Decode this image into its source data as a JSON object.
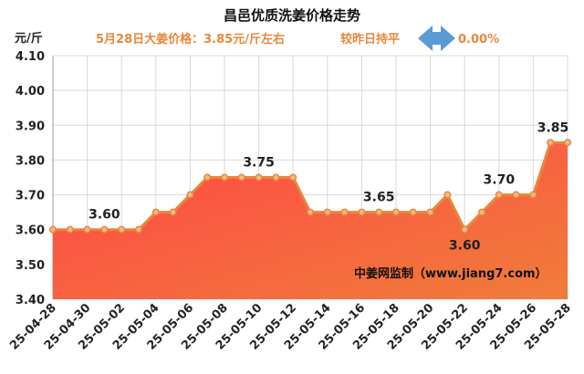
{
  "chart_data": {
    "type": "area",
    "title": "昌邑优质洗姜价格走势",
    "subtitle": "5月28日大姜价格：3.85元/斤左右",
    "change_label": "较昨日持平",
    "change_value": "0.00%",
    "ylabel": "元/斤",
    "ylim": [
      3.4,
      4.1
    ],
    "yticks": [
      "3.40",
      "3.50",
      "3.60",
      "3.70",
      "3.80",
      "3.90",
      "4.00",
      "4.10"
    ],
    "grid": true,
    "watermark": "中姜网监制（www.jiang7.com）",
    "x": [
      "25-04-28",
      "25-04-29",
      "25-04-30",
      "25-05-01",
      "25-05-02",
      "25-05-03",
      "25-05-04",
      "25-05-05",
      "25-05-06",
      "25-05-07",
      "25-05-08",
      "25-05-09",
      "25-05-10",
      "25-05-11",
      "25-05-12",
      "25-05-13",
      "25-05-14",
      "25-05-15",
      "25-05-16",
      "25-05-17",
      "25-05-18",
      "25-05-19",
      "25-05-20",
      "25-05-21",
      "25-05-22",
      "25-05-23",
      "25-05-24",
      "25-05-25",
      "25-05-26",
      "25-05-27",
      "25-05-28"
    ],
    "xtick_labels": [
      "25-04-28",
      "25-04-30",
      "25-05-02",
      "25-05-04",
      "25-05-06",
      "25-05-08",
      "25-05-10",
      "25-05-12",
      "25-05-14",
      "25-05-16",
      "25-05-18",
      "25-05-20",
      "25-05-22",
      "25-05-24",
      "25-05-26",
      "25-05-28"
    ],
    "values": [
      3.6,
      3.6,
      3.6,
      3.6,
      3.6,
      3.6,
      3.65,
      3.65,
      3.7,
      3.75,
      3.75,
      3.75,
      3.75,
      3.75,
      3.75,
      3.65,
      3.65,
      3.65,
      3.65,
      3.65,
      3.65,
      3.65,
      3.65,
      3.7,
      3.6,
      3.65,
      3.7,
      3.7,
      3.7,
      3.85,
      3.85
    ],
    "data_labels": [
      {
        "index": 3,
        "text": "3.60"
      },
      {
        "index": 12,
        "text": "3.75"
      },
      {
        "index": 19,
        "text": "3.65"
      },
      {
        "index": 24,
        "text": "3.60"
      },
      {
        "index": 26,
        "text": "3.70"
      },
      {
        "index": 30,
        "text": "3.85"
      }
    ],
    "colors": {
      "line": "#e8873a",
      "marker_fill": "#f3b98a",
      "area_top": "#ff4646",
      "area_bottom": "#f07d3a",
      "arrow": "#5b9bd5",
      "grid": "#d8d8d8"
    }
  }
}
